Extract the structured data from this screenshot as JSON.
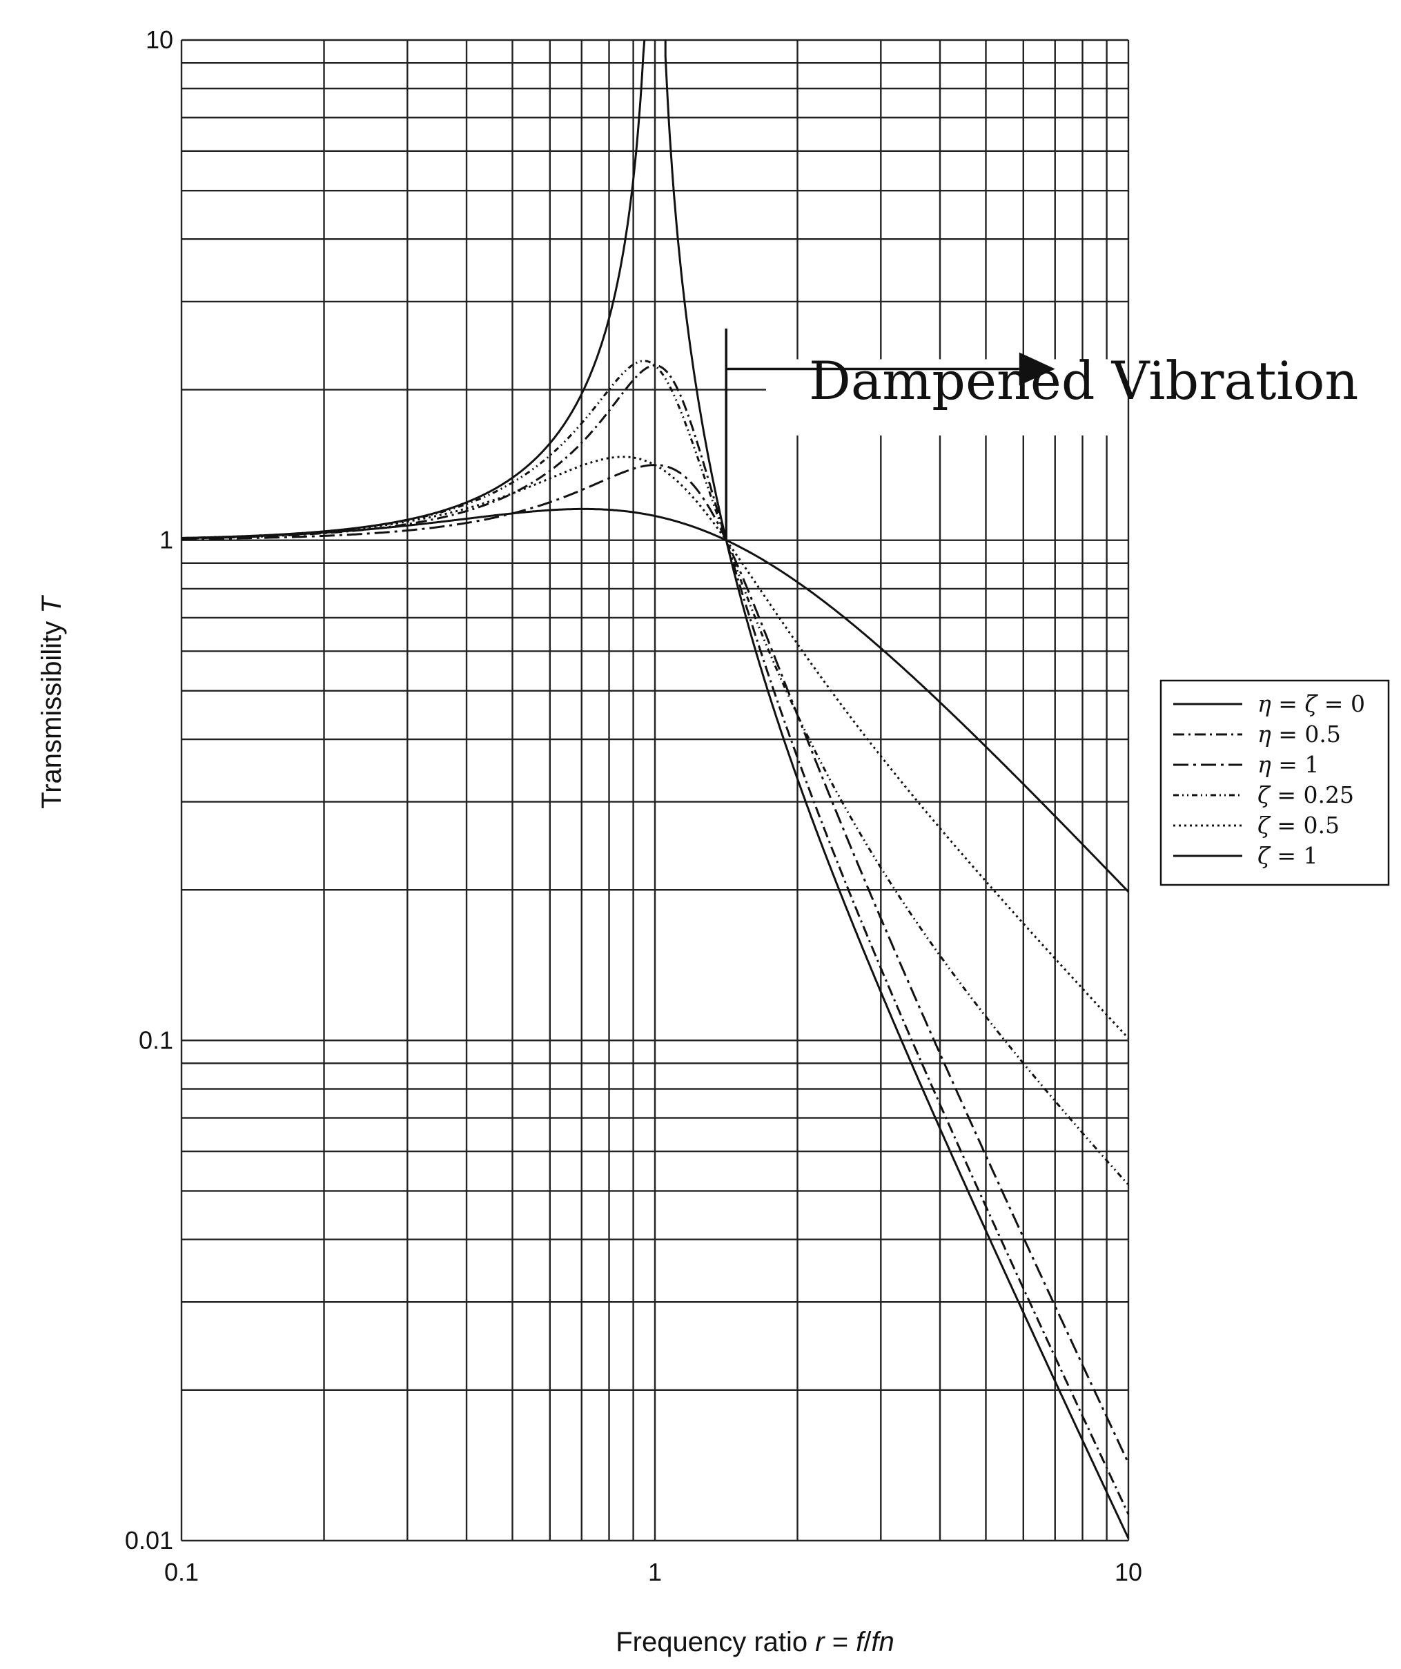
{
  "chart_data": {
    "type": "line",
    "x_scale": "log",
    "y_scale": "log",
    "xlim": [
      0.1,
      10
    ],
    "ylim": [
      0.01,
      10
    ],
    "xlabel": "Frequency ratio r = f/fn",
    "xlabel_parts": {
      "prefix": "Frequency ratio ",
      "r": "r",
      "eq": " = ",
      "f": "f",
      "slash": "/",
      "fn": "fn"
    },
    "ylabel": "Transmissibility T",
    "ylabel_parts": {
      "prefix": "Transmissibility ",
      "T": "T"
    },
    "x_ticks": [
      {
        "value": 0.1,
        "label": "0.1"
      },
      {
        "value": 1,
        "label": "1"
      },
      {
        "value": 10,
        "label": "10"
      }
    ],
    "y_ticks": [
      {
        "value": 10,
        "label": "10"
      },
      {
        "value": 1,
        "label": "1"
      },
      {
        "value": 0.1,
        "label": "0.1"
      },
      {
        "value": 0.01,
        "label": "0.01"
      }
    ],
    "grid": true,
    "annotation": {
      "text": "Dampened Vibration",
      "arrow_from_r": 1.414,
      "arrow_to_r": 6.0,
      "arrow_at_T": 2.2
    },
    "legend_position": "right",
    "series": [
      {
        "name": "η = ζ = 0",
        "label_parts": [
          "η",
          " = ",
          "ζ",
          " = 0"
        ],
        "model": "undamped",
        "param": 0,
        "dash": ""
      },
      {
        "name": "η = 0.5",
        "label_parts": [
          "η",
          " = 0.5"
        ],
        "model": "hysteretic",
        "param": 0.5,
        "dash": "16 6 3 6"
      },
      {
        "name": "η = 1",
        "label_parts": [
          "η",
          " = 1"
        ],
        "model": "hysteretic",
        "param": 1,
        "dash": "22 7 4 7"
      },
      {
        "name": "ζ = 0.25",
        "label_parts": [
          "ζ",
          " = 0.25"
        ],
        "model": "viscous",
        "param": 0.25,
        "dash": "8 5 2 5 2 5"
      },
      {
        "name": "ζ = 0.5",
        "label_parts": [
          "ζ",
          " = 0.5"
        ],
        "model": "viscous",
        "param": 0.5,
        "dash": "3 5"
      },
      {
        "name": "ζ = 1",
        "label_parts": [
          "ζ",
          " = 1"
        ],
        "model": "viscous",
        "param": 1,
        "dash": ""
      }
    ]
  }
}
